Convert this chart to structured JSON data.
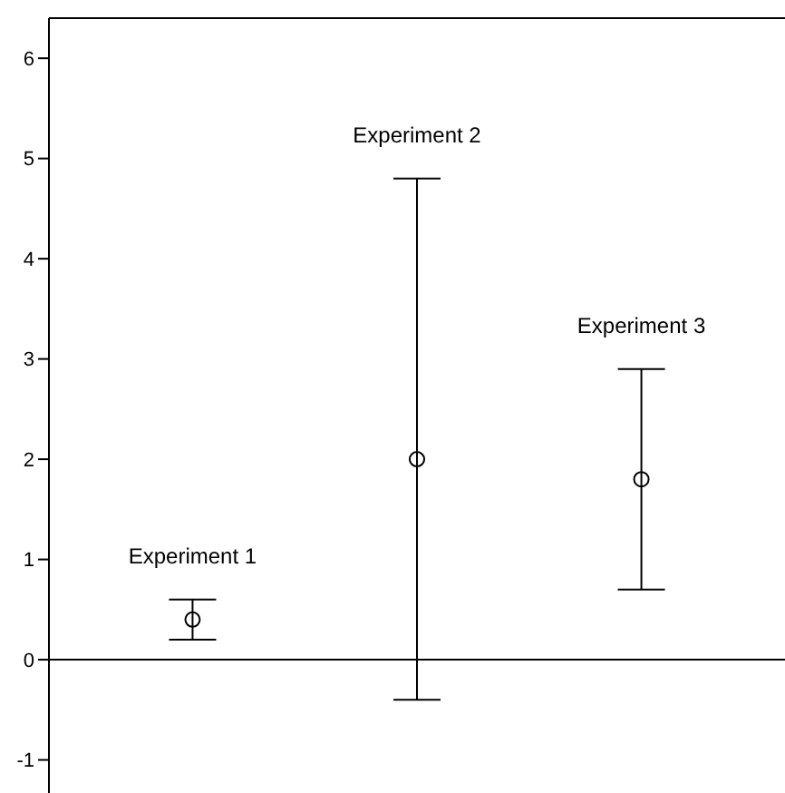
{
  "chart_data": {
    "type": "scatter",
    "categories": [
      "Experiment 1",
      "Experiment 2",
      "Experiment 3"
    ],
    "values": [
      0.4,
      2.0,
      1.8
    ],
    "errors": [
      [
        0.2,
        0.6
      ],
      [
        -0.4,
        4.8
      ],
      [
        0.7,
        2.9
      ]
    ],
    "color": "#000000",
    "marker": "circle",
    "ylim": [
      -1.33,
      6.4
    ],
    "yticks": [
      -1,
      0,
      1,
      2,
      3,
      4,
      5,
      6
    ]
  }
}
